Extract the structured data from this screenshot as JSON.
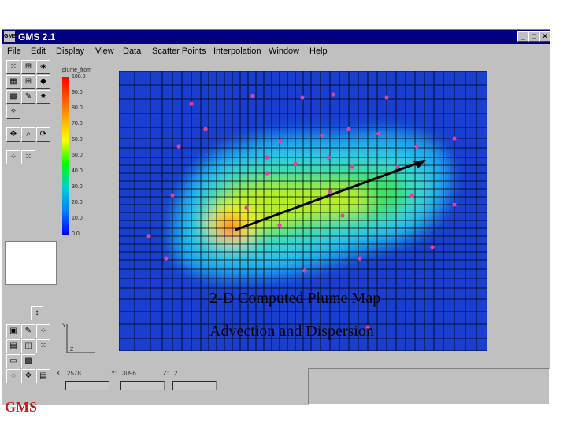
{
  "window": {
    "title": "GMS 2.1",
    "app_icon": "GMS",
    "minimize": "_",
    "maximize": "□",
    "close": "×"
  },
  "menu": [
    "File",
    "Edit",
    "Display",
    "View",
    "Data",
    "Scatter Points",
    "Interpolation",
    "Window",
    "Help"
  ],
  "legend": {
    "title": "plume_from",
    "values": [
      "100.0",
      "90.0",
      "80.0",
      "70.0",
      "60.0",
      "50.0",
      "40.0",
      "30.0",
      "20.0",
      "10.0",
      "0.0"
    ]
  },
  "captions": {
    "line1": "2-D Computed Plume Map",
    "line2": "Advection and Dispersion"
  },
  "coords": {
    "x_label": "X:",
    "x_value": "2578",
    "y_label": "Y:",
    "y_value": "3096",
    "z_label": "Z:",
    "z_value": "2"
  },
  "logo": "GMS",
  "colors": {
    "titlebar": "#000080",
    "plot_bg": "#1a3fd0",
    "arrow": "#000000",
    "points": "#e040a0"
  }
}
